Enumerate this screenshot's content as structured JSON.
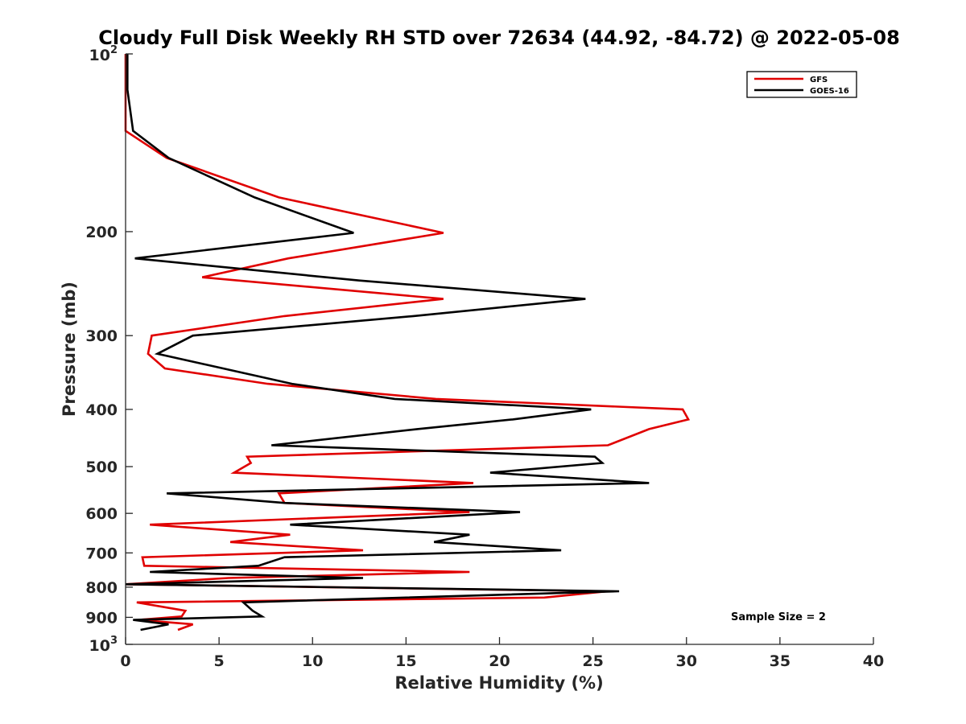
{
  "chart_data": {
    "type": "line",
    "title": "Cloudy Full Disk Weekly RH STD over 72634 (44.92, -84.72) @ 2022-05-08",
    "xlabel": "Relative Humidity (%)",
    "ylabel": "Pressure (mb)",
    "xlim": [
      0,
      40
    ],
    "ylim": [
      100,
      1000
    ],
    "y_scale": "log",
    "y_reversed": true,
    "x_ticks": [
      "0",
      "5",
      "10",
      "15",
      "20",
      "25",
      "30",
      "35",
      "40"
    ],
    "y_ticks": [
      {
        "value": 100,
        "label": "10",
        "sup": "2"
      },
      {
        "value": 200,
        "label": "200"
      },
      {
        "value": 300,
        "label": "300"
      },
      {
        "value": 400,
        "label": "400"
      },
      {
        "value": 500,
        "label": "500"
      },
      {
        "value": 600,
        "label": "600"
      },
      {
        "value": 700,
        "label": "700"
      },
      {
        "value": 800,
        "label": "800"
      },
      {
        "value": 900,
        "label": "900"
      },
      {
        "value": 1000,
        "label": "10",
        "sup": "3"
      }
    ],
    "legend_position": "top-right",
    "grid": false,
    "annotation": "Sample Size = 2",
    "series": [
      {
        "name": "GFS",
        "color": "#e00000",
        "points": [
          [
            0.0,
            100
          ],
          [
            0.0,
            115
          ],
          [
            0.0,
            135
          ],
          [
            2.2,
            150
          ],
          [
            8.2,
            175
          ],
          [
            17.0,
            201
          ],
          [
            8.7,
            222
          ],
          [
            4.1,
            239
          ],
          [
            17.0,
            260
          ],
          [
            8.5,
            278
          ],
          [
            1.4,
            300
          ],
          [
            1.2,
            322
          ],
          [
            2.1,
            341
          ],
          [
            7.6,
            362
          ],
          [
            16.6,
            384
          ],
          [
            29.8,
            400
          ],
          [
            30.1,
            416
          ],
          [
            28.0,
            432
          ],
          [
            25.8,
            460
          ],
          [
            6.5,
            481
          ],
          [
            6.7,
            493
          ],
          [
            5.8,
            512
          ],
          [
            18.6,
            533
          ],
          [
            8.2,
            555
          ],
          [
            8.5,
            576
          ],
          [
            18.4,
            597
          ],
          [
            1.3,
            627
          ],
          [
            8.8,
            652
          ],
          [
            5.6,
            671
          ],
          [
            12.7,
            693
          ],
          [
            0.9,
            712
          ],
          [
            1.0,
            736
          ],
          [
            18.4,
            754
          ],
          [
            5.5,
            772
          ],
          [
            0.0,
            791
          ],
          [
            25.8,
            813
          ],
          [
            22.4,
            833
          ],
          [
            0.6,
            849
          ],
          [
            3.2,
            877
          ],
          [
            3.0,
            897
          ],
          [
            0.7,
            909
          ],
          [
            3.6,
            925
          ],
          [
            2.8,
            945
          ]
        ]
      },
      {
        "name": "GOES-16",
        "color": "#000000",
        "points": [
          [
            0.1,
            100
          ],
          [
            0.1,
            115
          ],
          [
            0.4,
            135
          ],
          [
            2.3,
            150
          ],
          [
            6.9,
            175
          ],
          [
            12.2,
            201
          ],
          [
            0.5,
            222
          ],
          [
            12.5,
            242
          ],
          [
            24.6,
            260
          ],
          [
            15.4,
            278
          ],
          [
            3.6,
            300
          ],
          [
            1.7,
            322
          ],
          [
            8.9,
            362
          ],
          [
            14.4,
            384
          ],
          [
            24.9,
            400
          ],
          [
            20.7,
            416
          ],
          [
            15.6,
            432
          ],
          [
            7.8,
            460
          ],
          [
            25.1,
            481
          ],
          [
            25.5,
            493
          ],
          [
            19.5,
            512
          ],
          [
            28.0,
            533
          ],
          [
            2.2,
            555
          ],
          [
            8.5,
            576
          ],
          [
            21.1,
            597
          ],
          [
            8.8,
            627
          ],
          [
            18.4,
            652
          ],
          [
            16.5,
            671
          ],
          [
            23.3,
            693
          ],
          [
            8.5,
            712
          ],
          [
            7.1,
            736
          ],
          [
            1.3,
            754
          ],
          [
            12.7,
            772
          ],
          [
            0.0,
            791
          ],
          [
            26.4,
            813
          ],
          [
            6.3,
            849
          ],
          [
            6.8,
            877
          ],
          [
            7.3,
            897
          ],
          [
            0.4,
            909
          ],
          [
            2.3,
            925
          ],
          [
            0.8,
            945
          ]
        ]
      }
    ]
  }
}
